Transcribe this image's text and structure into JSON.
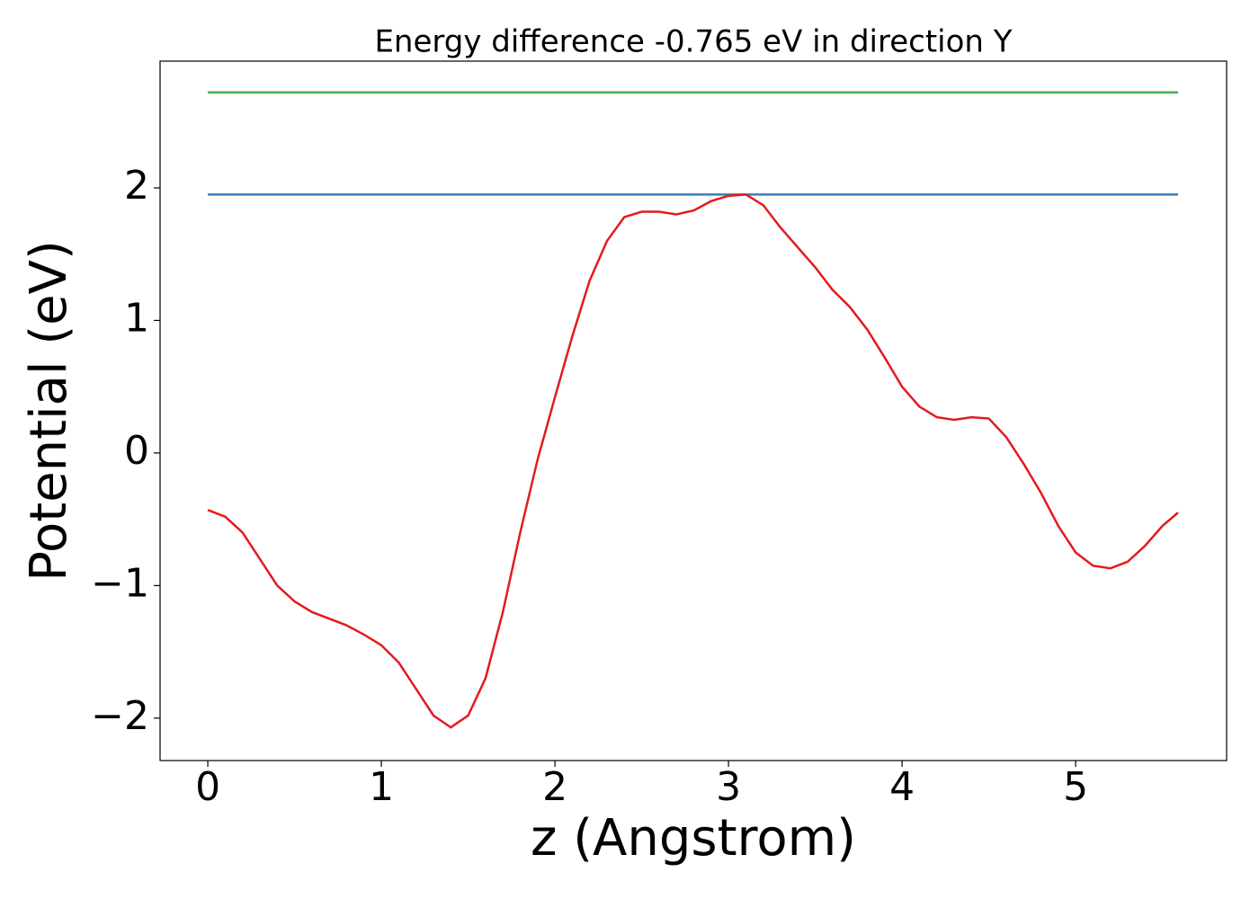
{
  "chart_data": {
    "type": "line",
    "title": "Energy difference -0.765 eV in direction Y",
    "xlabel": "z (Angstrom)",
    "ylabel": "Potential (eV)",
    "xlim": [
      -0.275,
      5.87
    ],
    "ylim": [
      -2.32,
      2.956
    ],
    "xticks": [
      0,
      1,
      2,
      3,
      4,
      5
    ],
    "yticks": [
      {
        "value": -2,
        "label": "−2"
      },
      {
        "value": -1,
        "label": "−1"
      },
      0,
      1,
      2
    ],
    "grid": false,
    "series": [
      {
        "color": "#4daf4a",
        "x": [
          0,
          5.59
        ],
        "values": [
          2.72,
          2.72
        ]
      },
      {
        "color": "#377eb8",
        "x": [
          0,
          5.59
        ],
        "values": [
          1.95,
          1.95
        ]
      },
      {
        "color": "#e41a1c",
        "x": [
          0,
          0.1,
          0.2,
          0.3,
          0.4,
          0.5,
          0.6,
          0.7,
          0.8,
          0.9,
          1.0,
          1.1,
          1.2,
          1.3,
          1.4,
          1.5,
          1.6,
          1.7,
          1.8,
          1.9,
          2.0,
          2.1,
          2.2,
          2.3,
          2.4,
          2.5,
          2.6,
          2.7,
          2.8,
          2.9,
          3.0,
          3.1,
          3.2,
          3.3,
          3.4,
          3.5,
          3.6,
          3.7,
          3.8,
          3.9,
          4.0,
          4.1,
          4.2,
          4.3,
          4.4,
          4.5,
          4.6,
          4.7,
          4.8,
          4.9,
          5.0,
          5.1,
          5.2,
          5.3,
          5.4,
          5.5,
          5.59
        ],
        "values": [
          -0.43,
          -0.48,
          -0.6,
          -0.8,
          -1.0,
          -1.12,
          -1.2,
          -1.25,
          -1.3,
          -1.37,
          -1.45,
          -1.58,
          -1.78,
          -1.98,
          -2.07,
          -1.98,
          -1.7,
          -1.2,
          -0.6,
          -0.05,
          0.42,
          0.88,
          1.3,
          1.6,
          1.78,
          1.82,
          1.82,
          1.8,
          1.83,
          1.9,
          1.94,
          1.95,
          1.87,
          1.7,
          1.55,
          1.4,
          1.23,
          1.1,
          0.93,
          0.72,
          0.5,
          0.35,
          0.27,
          0.25,
          0.27,
          0.26,
          0.12,
          -0.08,
          -0.3,
          -0.55,
          -0.75,
          -0.85,
          -0.87,
          -0.82,
          -0.7,
          -0.55,
          -0.45
        ]
      }
    ]
  }
}
